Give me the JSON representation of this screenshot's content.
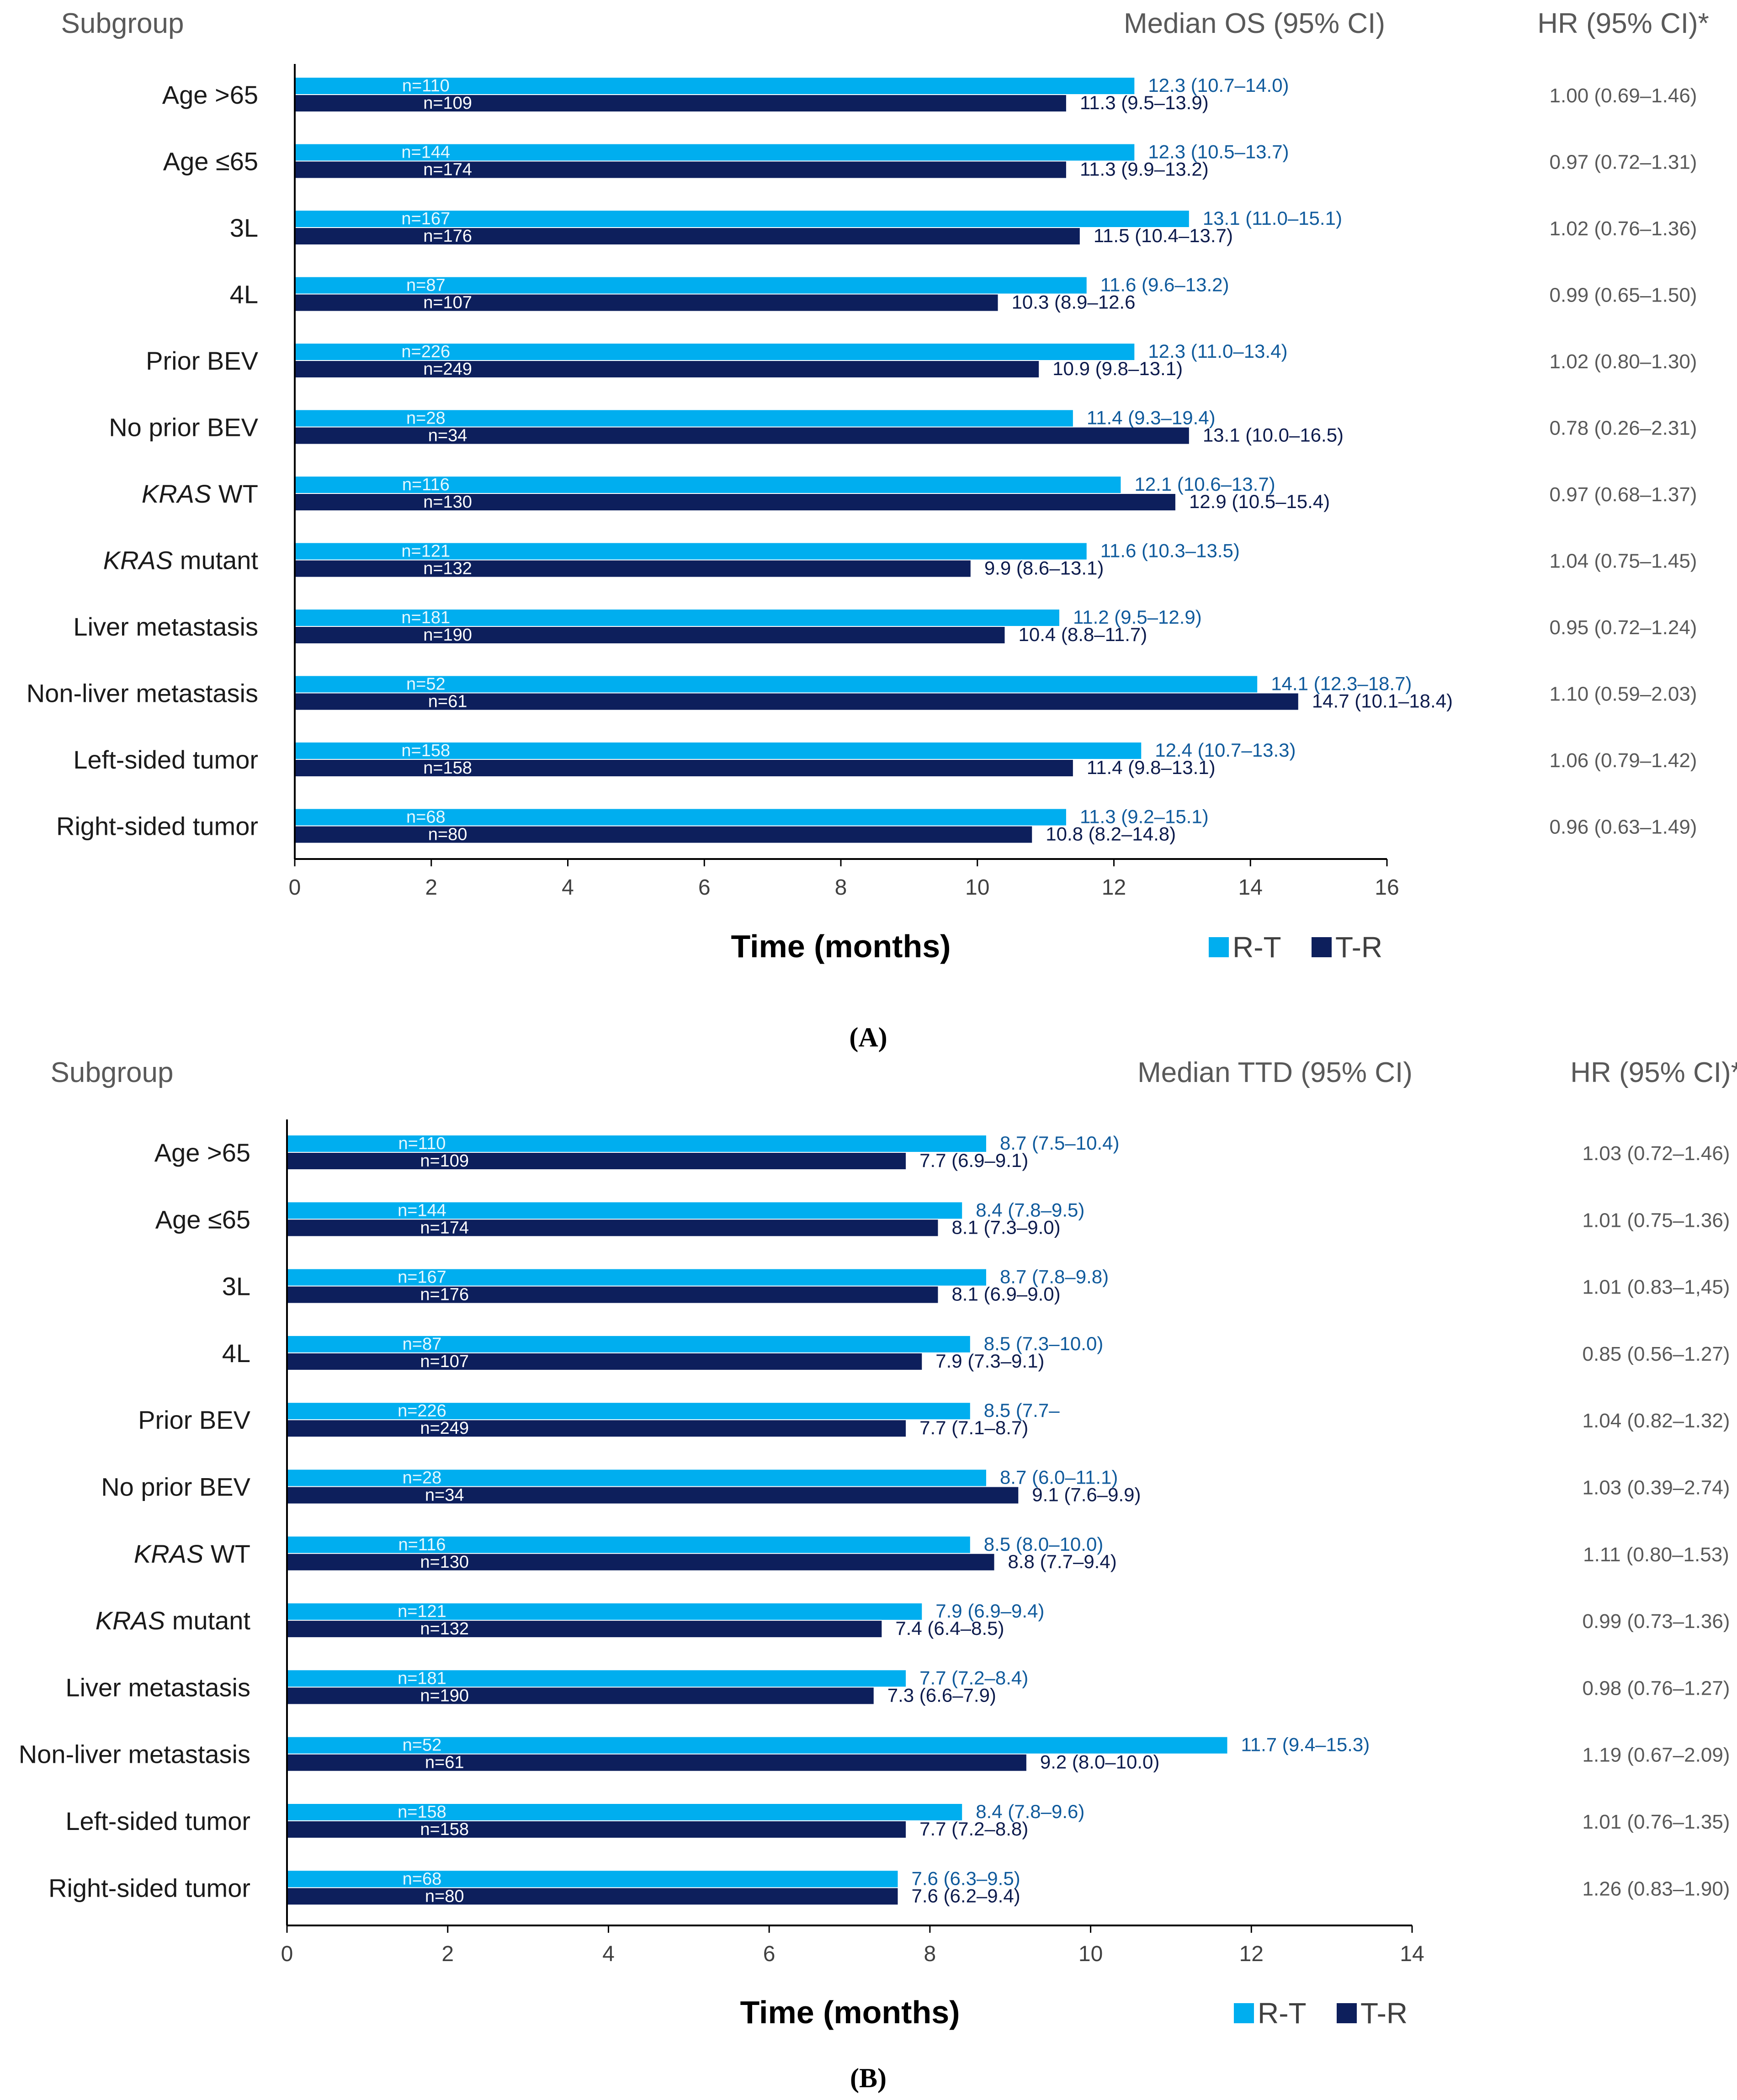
{
  "figure": {
    "panels": [
      "A",
      "B"
    ],
    "legend": [
      {
        "name": "R-T",
        "color": "#00AEEF"
      },
      {
        "name": "T-R",
        "color": "#0D1F5C"
      }
    ],
    "headers": {
      "subgroup": "Subgroup",
      "median_a": "Median OS (95% CI)",
      "median_b": "Median TTD (95% CI)",
      "hr": "HR (95% CI)*"
    },
    "xlabel": "Time (months)"
  },
  "chart_data": [
    {
      "panel": "A",
      "label": "(A)",
      "type": "bar",
      "orientation": "horizontal",
      "title": "Median OS (95% CI)",
      "xlabel": "Time (months)",
      "xlim": [
        0,
        16
      ],
      "xticks": [
        0,
        2,
        4,
        6,
        8,
        10,
        12,
        14,
        16
      ],
      "categories": [
        {
          "pre": "",
          "it": "",
          "post": "Age >65"
        },
        {
          "pre": "",
          "it": "",
          "post": "Age ≤65"
        },
        {
          "pre": "",
          "it": "",
          "post": "3L"
        },
        {
          "pre": "",
          "it": "",
          "post": "4L"
        },
        {
          "pre": "",
          "it": "",
          "post": "Prior BEV"
        },
        {
          "pre": "",
          "it": "",
          "post": "No prior BEV"
        },
        {
          "pre": "",
          "it": "KRAS",
          "post": " WT"
        },
        {
          "pre": "",
          "it": "KRAS",
          "post": " mutant"
        },
        {
          "pre": "",
          "it": "",
          "post": "Liver metastasis"
        },
        {
          "pre": "",
          "it": "",
          "post": "Non-liver metastasis"
        },
        {
          "pre": "",
          "it": "",
          "post": "Left-sided tumor"
        },
        {
          "pre": "",
          "it": "",
          "post": "Right-sided tumor"
        }
      ],
      "series": [
        {
          "name": "R-T",
          "color": "#00AEEF",
          "values": [
            12.3,
            12.3,
            13.1,
            11.6,
            12.3,
            11.4,
            12.1,
            11.6,
            11.2,
            14.1,
            12.4,
            11.3
          ],
          "labels": [
            "12.3 (10.7–14.0)",
            "12.3 (10.5–13.7)",
            "13.1 (11.0–15.1)",
            "11.6 (9.6–13.2)",
            "12.3 (11.0–13.4)",
            "11.4 (9.3–19.4)",
            "12.1 (10.6–13.7)",
            "11.6 (10.3–13.5)",
            "11.2 (9.5–12.9)",
            "14.1 (12.3–18.7)",
            "12.4 (10.7–13.3)",
            "11.3 (9.2–15.1)"
          ],
          "n": [
            "n=110",
            "n=144",
            "n=167",
            "n=87",
            "n=226",
            "n=28",
            "n=116",
            "n=121",
            "n=181",
            "n=52",
            "n=158",
            "n=68"
          ]
        },
        {
          "name": "T-R",
          "color": "#0D1F5C",
          "values": [
            11.3,
            11.3,
            11.5,
            10.3,
            10.9,
            13.1,
            12.9,
            9.9,
            10.4,
            14.7,
            11.4,
            10.8
          ],
          "labels": [
            "11.3 (9.5–13.9)",
            "11.3 (9.9–13.2)",
            "11.5 (10.4–13.7)",
            "10.3 (8.9–12.6",
            "10.9 (9.8–13.1)",
            "13.1 (10.0–16.5)",
            "12.9 (10.5–15.4)",
            "9.9 (8.6–13.1)",
            "10.4 (8.8–11.7)",
            "14.7 (10.1–18.4)",
            "11.4 (9.8–13.1)",
            "10.8 (8.2–14.8)"
          ],
          "n": [
            "n=109",
            "n=174",
            "n=176",
            "n=107",
            "n=249",
            "n=34",
            "n=130",
            "n=132",
            "n=190",
            "n=61",
            "n=158",
            "n=80"
          ]
        }
      ],
      "hr": [
        "1.00 (0.69–1.46)",
        "0.97 (0.72–1.31)",
        "1.02 (0.76–1.36)",
        "0.99 (0.65–1.50)",
        "1.02 (0.80–1.30)",
        "0.78 (0.26–2.31)",
        "0.97 (0.68–1.37)",
        "1.04 (0.75–1.45)",
        "0.95 (0.72–1.24)",
        "1.10 (0.59–2.03)",
        "1.06 (0.79–1.42)",
        "0.96 (0.63–1.49)"
      ]
    },
    {
      "panel": "B",
      "label": "(B)",
      "type": "bar",
      "orientation": "horizontal",
      "title": "Median TTD (95% CI)",
      "xlabel": "Time (months)",
      "xlim": [
        0,
        14
      ],
      "xticks": [
        0,
        2,
        4,
        6,
        8,
        10,
        12,
        14
      ],
      "categories": [
        {
          "pre": "",
          "it": "",
          "post": "Age >65"
        },
        {
          "pre": "",
          "it": "",
          "post": "Age ≤65"
        },
        {
          "pre": "",
          "it": "",
          "post": "3L"
        },
        {
          "pre": "",
          "it": "",
          "post": "4L"
        },
        {
          "pre": "",
          "it": "",
          "post": "Prior BEV"
        },
        {
          "pre": "",
          "it": "",
          "post": "No prior BEV"
        },
        {
          "pre": "",
          "it": "KRAS",
          "post": " WT"
        },
        {
          "pre": "",
          "it": "KRAS",
          "post": " mutant"
        },
        {
          "pre": "",
          "it": "",
          "post": "Liver metastasis"
        },
        {
          "pre": "",
          "it": "",
          "post": "Non-liver metastasis"
        },
        {
          "pre": "",
          "it": "",
          "post": "Left-sided tumor"
        },
        {
          "pre": "",
          "it": "",
          "post": "Right-sided tumor"
        }
      ],
      "series": [
        {
          "name": "R-T",
          "color": "#00AEEF",
          "values": [
            8.7,
            8.4,
            8.7,
            8.5,
            8.5,
            8.7,
            8.5,
            7.9,
            7.7,
            11.7,
            8.4,
            7.6
          ],
          "labels": [
            "8.7 (7.5–10.4)",
            "8.4 (7.8–9.5)",
            "8.7 (7.8–9.8)",
            "8.5 (7.3–10.0)",
            "8.5 (7.7–",
            "8.7 (6.0–11.1)",
            "8.5 (8.0–10.0)",
            "7.9 (6.9–9.4)",
            "7.7 (7.2–8.4)",
            "11.7 (9.4–15.3)",
            "8.4 (7.8–9.6)",
            "7.6 (6.3–9.5)"
          ],
          "n": [
            "n=110",
            "n=144",
            "n=167",
            "n=87",
            "n=226",
            "n=28",
            "n=116",
            "n=121",
            "n=181",
            "n=52",
            "n=158",
            "n=68"
          ]
        },
        {
          "name": "T-R",
          "color": "#0D1F5C",
          "values": [
            7.7,
            8.1,
            8.1,
            7.9,
            7.7,
            9.1,
            8.8,
            7.4,
            7.3,
            9.2,
            7.7,
            7.6
          ],
          "labels": [
            "7.7 (6.9–9.1)",
            "8.1 (7.3–9.0)",
            "8.1 (6.9–9.0)",
            "7.9 (7.3–9.1)",
            "7.7 (7.1–8.7)",
            "9.1 (7.6–9.9)",
            "8.8 (7.7–9.4)",
            "7.4 (6.4–8.5)",
            "7.3 (6.6–7.9)",
            "9.2 (8.0–10.0)",
            "7.7 (7.2–8.8)",
            "7.6 (6.2–9.4)"
          ],
          "n": [
            "n=109",
            "n=174",
            "n=176",
            "n=107",
            "n=249",
            "n=34",
            "n=130",
            "n=132",
            "n=190",
            "n=61",
            "n=158",
            "n=80"
          ]
        }
      ],
      "hr": [
        "1.03 (0.72–1.46)",
        "1.01 (0.75–1.36)",
        "1.01 (0.83–1,45)",
        "0.85 (0.56–1.27)",
        "1.04 (0.82–1.32)",
        "1.03 (0.39–2.74)",
        "1.11 (0.80–1.53)",
        "0.99 (0.73–1.36)",
        "0.98 (0.76–1.27)",
        "1.19 (0.67–2.09)",
        "1.01 (0.76–1.35)",
        "1.26 (0.83–1.90)"
      ]
    }
  ]
}
